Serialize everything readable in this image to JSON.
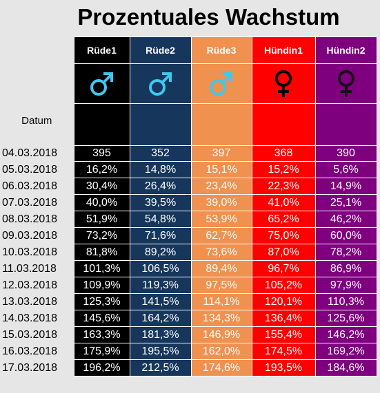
{
  "title": "Prozentuales Wachstum",
  "date_header": "Datum",
  "columns": [
    {
      "name": "Rüde1",
      "symbol": "male-icon",
      "symbol_color": "#3fc8ee"
    },
    {
      "name": "Rüde2",
      "symbol": "male-icon",
      "symbol_color": "#3fc8ee"
    },
    {
      "name": "Rüde3",
      "symbol": "male-icon",
      "symbol_color": "#3fc8ee"
    },
    {
      "name": "Hündin1",
      "symbol": "female-icon",
      "symbol_color": "#000000"
    },
    {
      "name": "Hündin2",
      "symbol": "female-icon",
      "symbol_color": "#1e0a1e"
    }
  ],
  "colors": {
    "background": "#e6e6e6",
    "col1": "#000000",
    "col2": "#16365c",
    "col3": "#f0914f",
    "col4": "#ff0000",
    "col5": "#7f007f"
  },
  "rows": [
    {
      "date": "04.03.2018",
      "values": [
        "395",
        "352",
        "397",
        "368",
        "390"
      ]
    },
    {
      "date": "05.03.2018",
      "values": [
        "16,2%",
        "14,8%",
        "15,1%",
        "15,2%",
        "5,6%"
      ]
    },
    {
      "date": "06.03.2018",
      "values": [
        "30,4%",
        "26,4%",
        "23,4%",
        "22,3%",
        "14,9%"
      ]
    },
    {
      "date": "07.03.2018",
      "values": [
        "40,0%",
        "39,5%",
        "39,0%",
        "41,0%",
        "25,1%"
      ]
    },
    {
      "date": "08.03.2018",
      "values": [
        "51,9%",
        "54,8%",
        "53,9%",
        "65,2%",
        "46,2%"
      ]
    },
    {
      "date": "09.03.2018",
      "values": [
        "73,2%",
        "71,6%",
        "62,7%",
        "75,0%",
        "60,0%"
      ]
    },
    {
      "date": "10.03.2018",
      "values": [
        "81,8%",
        "89,2%",
        "73,6%",
        "87,0%",
        "78,2%"
      ]
    },
    {
      "date": "11.03.2018",
      "values": [
        "101,3%",
        "106,5%",
        "89,4%",
        "96,7%",
        "86,9%"
      ]
    },
    {
      "date": "12.03.2018",
      "values": [
        "109,9%",
        "119,3%",
        "97,5%",
        "105,2%",
        "97,9%"
      ]
    },
    {
      "date": "13.03.2018",
      "values": [
        "125,3%",
        "141,5%",
        "114,1%",
        "120,1%",
        "110,3%"
      ]
    },
    {
      "date": "14.03.2018",
      "values": [
        "145,6%",
        "164,2%",
        "134,3%",
        "136,4%",
        "125,6%"
      ]
    },
    {
      "date": "15.03.2018",
      "values": [
        "163,3%",
        "181,3%",
        "146,9%",
        "155,4%",
        "146,2%"
      ]
    },
    {
      "date": "16.03.2018",
      "values": [
        "175,9%",
        "195,5%",
        "162,0%",
        "174,5%",
        "169,2%"
      ]
    },
    {
      "date": "17.03.2018",
      "values": [
        "196,2%",
        "212,5%",
        "174,6%",
        "193,5%",
        "184,6%"
      ]
    }
  ]
}
